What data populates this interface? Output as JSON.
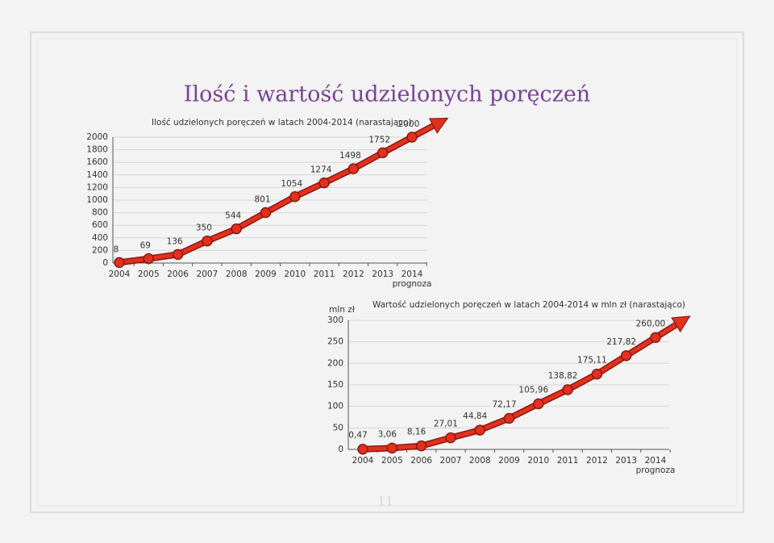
{
  "title": "Ilość i wartość udzielonych poręczeń",
  "page_number": "11",
  "chart_data": [
    {
      "type": "line",
      "title": "Ilość udzielonych poręczeń w latach 2004-2014 (narastająco)",
      "categories": [
        "2004",
        "2005",
        "2006",
        "2007",
        "2008",
        "2009",
        "2010",
        "2011",
        "2012",
        "2013",
        "2014"
      ],
      "category_note": "prognoza",
      "values": [
        8,
        69,
        136,
        350,
        544,
        801,
        1054,
        1274,
        1498,
        1752,
        2000
      ],
      "color": "#e3301f",
      "ylim": [
        0,
        2000
      ],
      "yticks": [
        0,
        200,
        400,
        600,
        800,
        1000,
        1200,
        1400,
        1600,
        1800,
        2000
      ],
      "grid": true
    },
    {
      "type": "line",
      "title": "Wartość udzielonych poręczeń w latach 2004-2014 w mln zł (narastająco)",
      "y_label": "mln zł",
      "categories": [
        "2004",
        "2005",
        "2006",
        "2007",
        "2008",
        "2009",
        "2010",
        "2011",
        "2012",
        "2013",
        "2014"
      ],
      "category_note": "prognoza",
      "values": [
        0.47,
        3.06,
        8.16,
        27.01,
        44.84,
        72.17,
        105.96,
        138.82,
        175.11,
        217.82,
        260.0
      ],
      "value_labels": [
        "0,47",
        "3,06",
        "8,16",
        "27,01",
        "44,84",
        "72,17",
        "105,96",
        "138,82",
        "175,11",
        "217,82",
        "260,00"
      ],
      "color": "#e3301f",
      "ylim": [
        0,
        300
      ],
      "yticks": [
        0,
        50,
        100,
        150,
        200,
        250,
        300
      ],
      "grid": true
    }
  ]
}
